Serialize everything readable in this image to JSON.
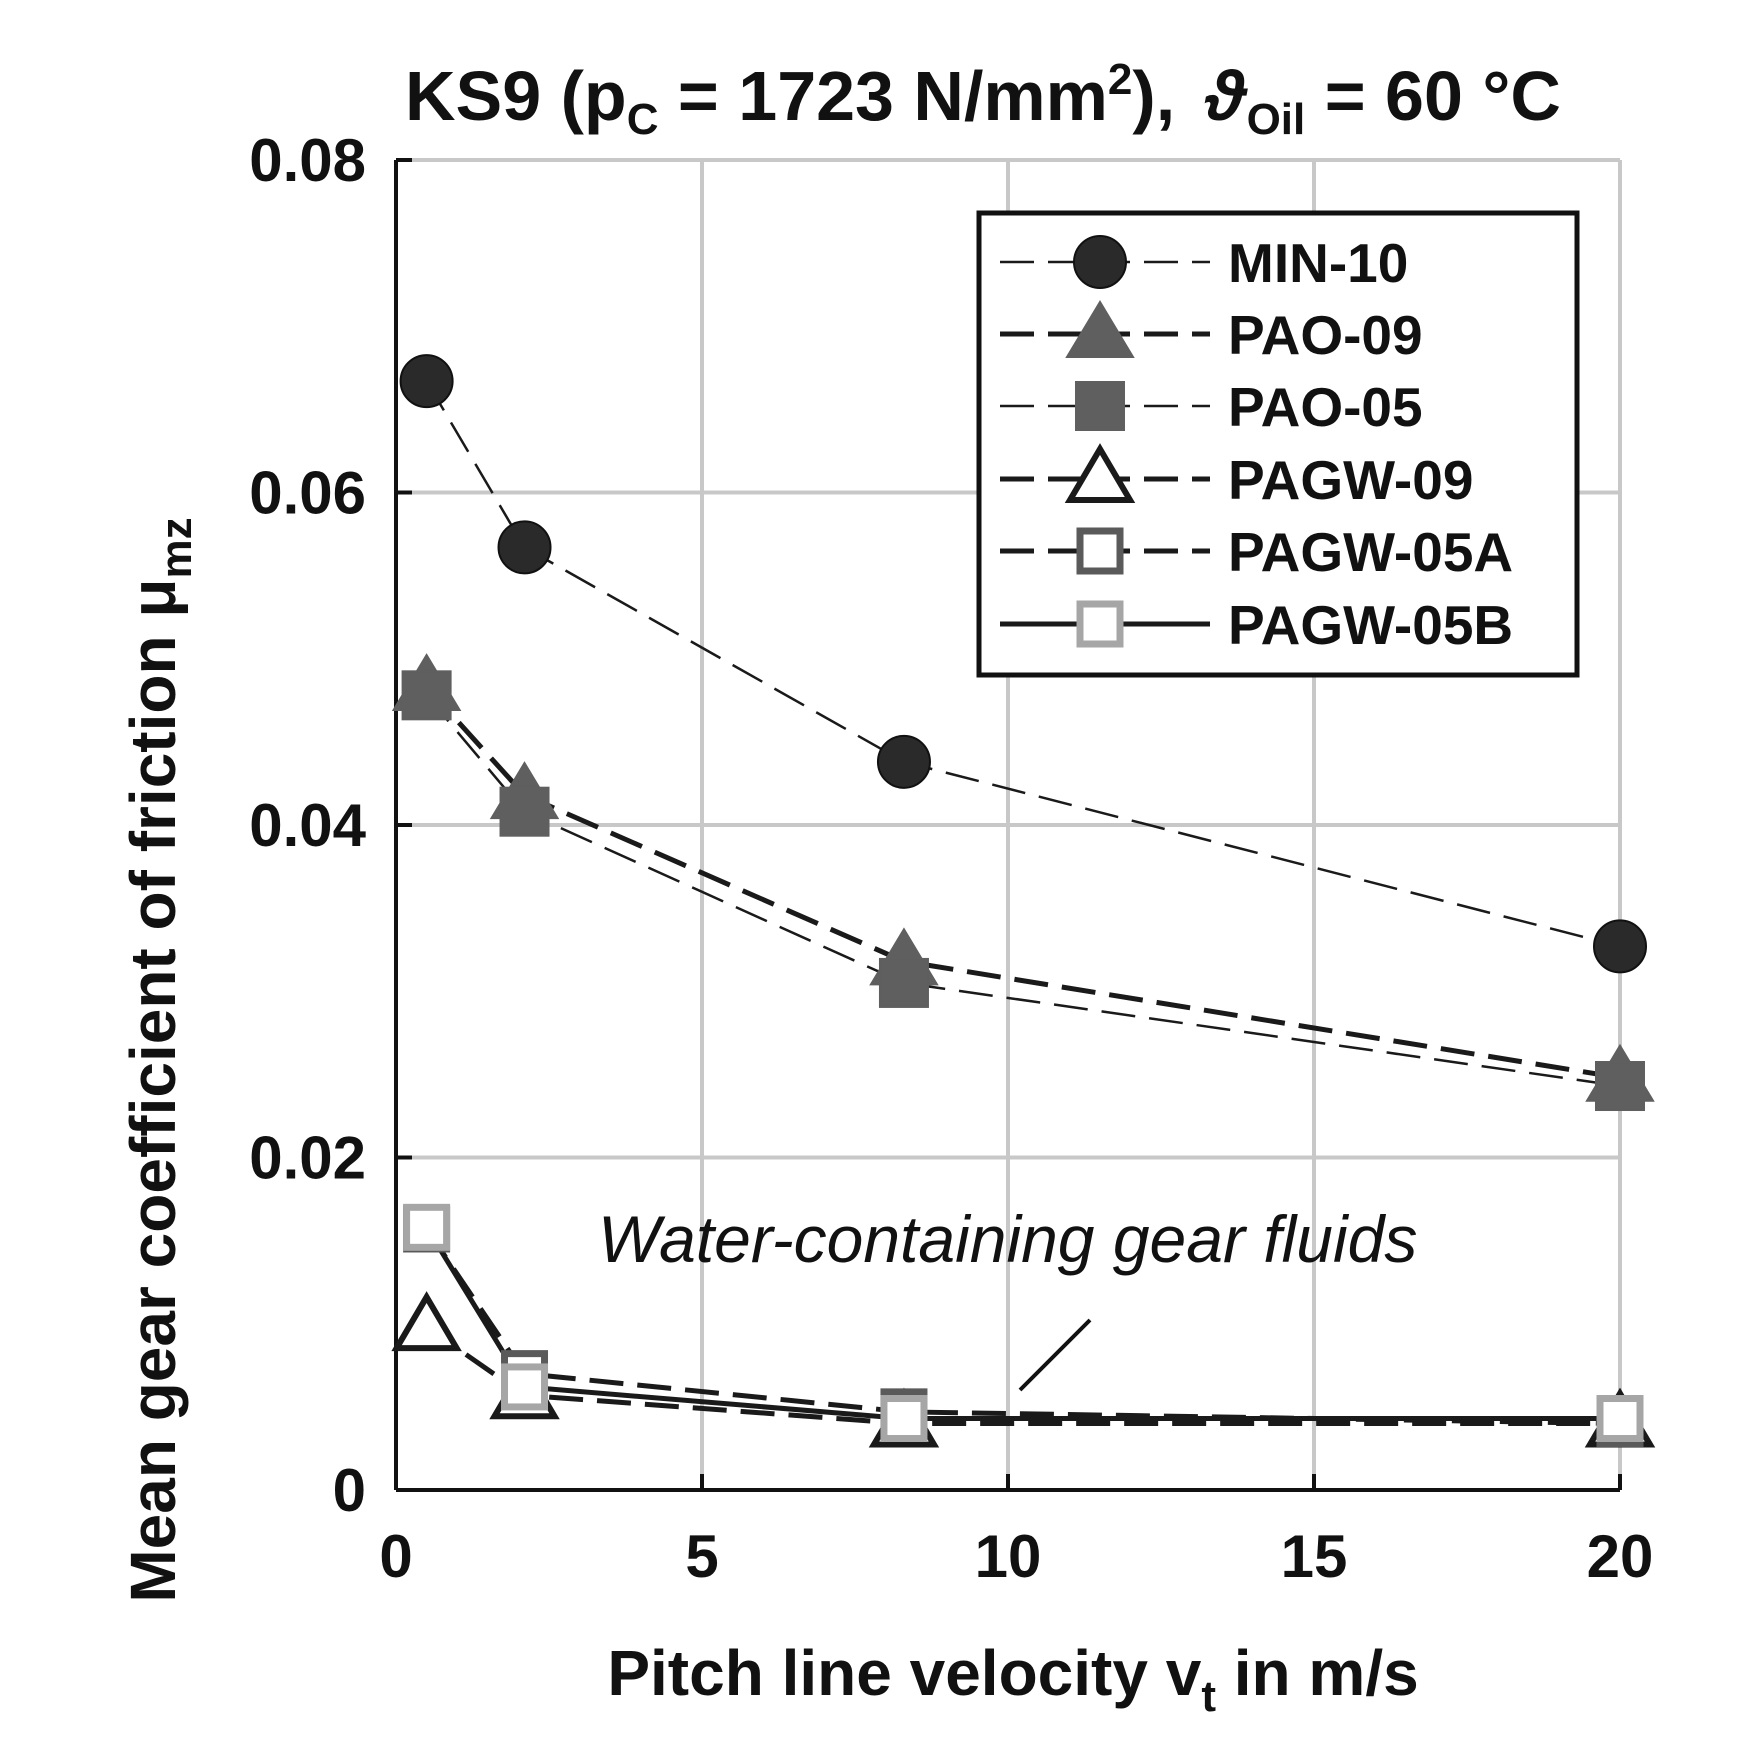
{
  "chart_data": {
    "type": "line",
    "title": {
      "prefix": "KS9 (p",
      "p_sub": "C",
      "mid": " = 1723 N/mm",
      "sup": "2",
      "close": "),",
      "theta": "ϑ",
      "theta_sub": "Oil",
      "suffix": " = 60 °C"
    },
    "xlabel": {
      "main": "Pitch line velocity v",
      "sub": "t",
      "tail": " in m/s"
    },
    "ylabel": {
      "main": "Mean gear coefficient of friction μ",
      "sub": "mz"
    },
    "xlim": [
      0,
      20
    ],
    "ylim": [
      0,
      0.08
    ],
    "xticks": [
      0,
      5,
      10,
      15,
      20
    ],
    "xtick_labels": [
      "0",
      "5",
      "10",
      "15",
      "20"
    ],
    "yticks": [
      0,
      0.02,
      0.04,
      0.06,
      0.08
    ],
    "ytick_labels": [
      "0",
      "0.02",
      "0.04",
      "0.06",
      "0.08"
    ],
    "grid": true,
    "legend_position": "top-right",
    "annotation": "Water-containing gear fluids",
    "series": [
      {
        "name": "MIN-10",
        "marker": "circle-filled",
        "line": "dash-thin",
        "x": [
          0.5,
          2.1,
          8.3,
          20
        ],
        "y": [
          0.0667,
          0.0567,
          0.0438,
          0.0327
        ]
      },
      {
        "name": "PAO-09",
        "marker": "triangle-filled",
        "line": "dash-thick",
        "x": [
          0.5,
          2.1,
          8.3,
          20
        ],
        "y": [
          0.0483,
          0.0418,
          0.0318,
          0.0248
        ]
      },
      {
        "name": "PAO-05",
        "marker": "square-filled",
        "line": "dash-thin",
        "x": [
          0.5,
          2.1,
          8.3,
          20
        ],
        "y": [
          0.0478,
          0.0408,
          0.0305,
          0.0243
        ]
      },
      {
        "name": "PAGW-09",
        "marker": "triangle-open",
        "line": "dash-thick",
        "x": [
          0.5,
          2.1,
          8.3,
          20
        ],
        "y": [
          0.0098,
          0.0057,
          0.004,
          0.004
        ]
      },
      {
        "name": "PAGW-05A",
        "marker": "square-open-dark",
        "line": "dash-thick",
        "x": [
          0.5,
          2.1,
          8.3,
          20
        ],
        "y": [
          0.0157,
          0.007,
          0.0047,
          0.004
        ]
      },
      {
        "name": "PAGW-05B",
        "marker": "square-open-light",
        "line": "solid",
        "x": [
          0.5,
          2.1,
          8.3,
          20
        ],
        "y": [
          0.0158,
          0.0062,
          0.0043,
          0.0043
        ]
      }
    ],
    "colors": {
      "min": "#2a2a2a",
      "pao": "#5f5f5f",
      "pagw05a": "#5a5a5a",
      "pagw05b": "#a6a6a6",
      "line": "#1a1a1a"
    }
  }
}
